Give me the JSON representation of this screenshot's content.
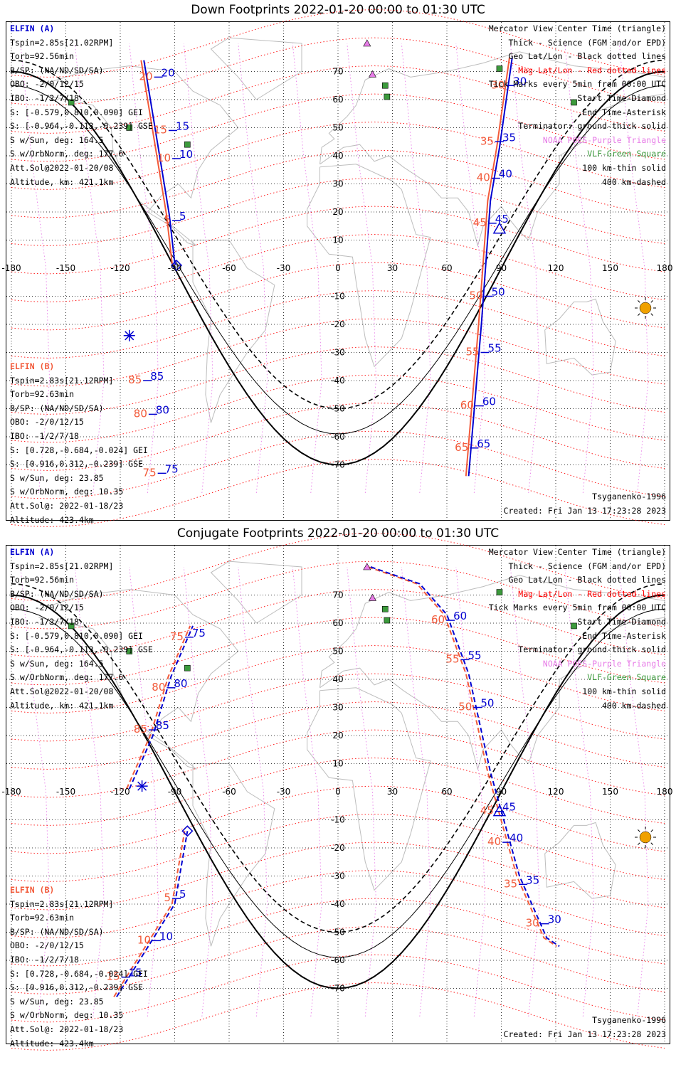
{
  "panels": [
    {
      "id": "down",
      "title": "Down Footprints 2022-01-20 00:00 to 01:30 UTC",
      "track_a": {
        "lines": [
          [
            [
              -107,
              74
            ],
            [
              -93,
              19
            ],
            [
              -90,
              2
            ],
            [
              -89,
              1
            ]
          ],
          [
            [
              72,
              -74
            ],
            [
              79,
              -20
            ],
            [
              84,
              24
            ],
            [
              89,
              43
            ],
            [
              96,
              75
            ]
          ]
        ],
        "ticks": [
          {
            "t": "20",
            "lon": -99,
            "lat": 68
          },
          {
            "t": "15",
            "lon": -91,
            "lat": 49
          },
          {
            "t": "10",
            "lon": -89,
            "lat": 39
          },
          {
            "t": "5",
            "lon": -89,
            "lat": 17
          },
          {
            "t": "30",
            "lon": 95,
            "lat": 65
          },
          {
            "t": "35",
            "lon": 89,
            "lat": 45
          },
          {
            "t": "40",
            "lon": 87,
            "lat": 32
          },
          {
            "t": "45",
            "lon": 85,
            "lat": 16
          },
          {
            "t": "50",
            "lon": 83,
            "lat": -10
          },
          {
            "t": "55",
            "lon": 81,
            "lat": -30
          },
          {
            "t": "60",
            "lon": 78,
            "lat": -49
          },
          {
            "t": "65",
            "lon": 75,
            "lat": -64
          },
          {
            "t": "85",
            "lon": -105,
            "lat": -40
          },
          {
            "t": "80",
            "lon": -102,
            "lat": -52
          },
          {
            "t": "75",
            "lon": -97,
            "lat": -73
          }
        ]
      },
      "start": {
        "lon": -89,
        "lat": 1
      },
      "end": {
        "lon": -115,
        "lat": -24
      },
      "center": {
        "lon": 89,
        "lat": 14
      }
    },
    {
      "id": "conj",
      "title": "Conjugate Footprints 2022-01-20 00:00 to 01:30 UTC",
      "track_a": {
        "lines": [
          [
            [
              -122,
              -73
            ],
            [
              -90,
              -40
            ],
            [
              -83,
              -14
            ]
          ],
          [
            [
              -115,
              1
            ],
            [
              -102,
              20
            ],
            [
              -92,
              41
            ],
            [
              -80,
              59
            ]
          ],
          [
            [
              18,
              80
            ],
            [
              45,
              74
            ],
            [
              60,
              63
            ],
            [
              72,
              42
            ],
            [
              84,
              7
            ],
            [
              100,
              -30
            ],
            [
              115,
              -52
            ],
            [
              122,
              -55
            ]
          ]
        ],
        "ticks": [
          {
            "t": "75",
            "lon": -82,
            "lat": 55
          },
          {
            "t": "80",
            "lon": -92,
            "lat": 37
          },
          {
            "t": "85",
            "lon": -102,
            "lat": 22
          },
          {
            "t": "5",
            "lon": -89,
            "lat": -38
          },
          {
            "t": "10",
            "lon": -100,
            "lat": -53
          },
          {
            "t": "15",
            "lon": -117,
            "lat": -66
          },
          {
            "t": "60",
            "lon": 62,
            "lat": 61
          },
          {
            "t": "55",
            "lon": 70,
            "lat": 47
          },
          {
            "t": "50",
            "lon": 77,
            "lat": 30
          },
          {
            "t": "45",
            "lon": 89,
            "lat": -7
          },
          {
            "t": "40",
            "lon": 93,
            "lat": -18
          },
          {
            "t": "35",
            "lon": 102,
            "lat": -33
          },
          {
            "t": "30",
            "lon": 114,
            "lat": -47
          }
        ]
      },
      "start": {
        "lon": -83,
        "lat": -14
      },
      "end": {
        "lon": -108,
        "lat": 2
      },
      "center": {
        "lon": 89,
        "lat": -7
      }
    }
  ],
  "elfin_a": {
    "header": "ELFIN (A)",
    "lines": [
      "Tspin=2.85s[21.02RPM]",
      "Torb=92.56min",
      "B/SP: (NA/ND/SD/SA)",
      "OBO: -2/0/12/15",
      "IBO: -1/2/7/18",
      "S: [-0.579,0.810,0.090] GEI",
      "S: [-0.964,-0.113,-0.239] GSE",
      "S w/Sun, deg: 164.5",
      "S w/OrbNorm, deg: 177.6",
      "Att.Sol@2022-01-20/08",
      "Altitude, km: 421.1km"
    ]
  },
  "elfin_b": {
    "header": "ELFIN (B)",
    "lines": [
      "Tspin=2.83s[21.12RPM]",
      "Torb=92.63min",
      "B/SP: (NA/ND/SD/SA)",
      "OBO: -2/0/12/15",
      "IBO: -1/2/7/18",
      "S: [0.728,-0.684,-0.024] GEI",
      "S: [0.916,0.312,-0.239] GSE",
      "S w/Sun, deg: 23.85",
      "S w/OrbNorm, deg: 10.35",
      "Att.Sol@: 2022-01-18/23",
      "Altitude: 423.4km"
    ]
  },
  "legend": [
    {
      "t": "Mercator View Center Time (triangle)",
      "c": "#000000"
    },
    {
      "t": "Thick - Science (FGM and/or EPD)",
      "c": "#000000"
    },
    {
      "t": "Geo Lat/Lon - Black dotted lines",
      "c": "#000000"
    },
    {
      "t": "Mag Lat/Lon - Red dotted lines",
      "c": "#ff0000"
    },
    {
      "t": "Tick Marks every 5min from 00:00 UTC",
      "c": "#000000"
    },
    {
      "t": "Start Time-Diamond",
      "c": "#000000"
    },
    {
      "t": "End Time-Asterisk",
      "c": "#000000"
    },
    {
      "t": "Terminator: ground-thick solid",
      "c": "#000000"
    },
    {
      "t": "NOAA POES-Purple Triangle",
      "c": "#e77ce7"
    },
    {
      "t": "VLF-Green Square",
      "c": "#3c9a3c"
    },
    {
      "t": "100 km-thin solid",
      "c": "#000000"
    },
    {
      "t": "400 km-dashed",
      "c": "#000000"
    }
  ],
  "model": "Tsyganenko-1996",
  "created": "Created: Fri Jan 13 17:23:28 2023",
  "axes": {
    "lon_ticks": [
      -180,
      -150,
      -120,
      -90,
      -60,
      -30,
      0,
      30,
      60,
      90,
      120,
      150,
      180
    ],
    "lat_ticks": [
      70,
      60,
      50,
      40,
      30,
      20,
      10,
      -10,
      -20,
      -30,
      -40,
      -50,
      -60,
      -70
    ]
  },
  "poes": [
    {
      "lon": 16,
      "lat": 80
    },
    {
      "lon": 19,
      "lat": 69
    }
  ],
  "vlf": [
    {
      "lon": 26,
      "lat": 65
    },
    {
      "lon": 27,
      "lat": 61
    },
    {
      "lon": -147,
      "lat": 59
    },
    {
      "lon": -115,
      "lat": 50
    },
    {
      "lon": -83,
      "lat": 44
    },
    {
      "lon": 89,
      "lat": 71
    },
    {
      "lon": 130,
      "lat": 59
    }
  ],
  "colors": {
    "blue": "#0000d0",
    "orange": "#f25a3a",
    "red": "#ff0000",
    "purple": "#e77ce7",
    "green": "#3c9a3c",
    "sun": "#f0a000"
  }
}
